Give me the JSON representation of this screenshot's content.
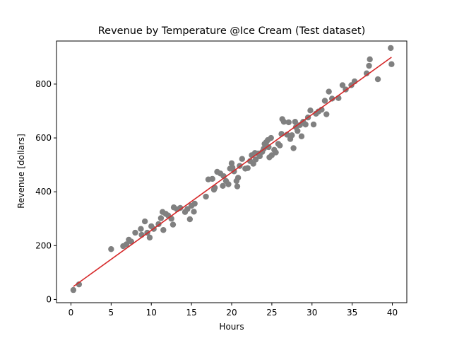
{
  "chart_data": {
    "type": "scatter",
    "title": "Revenue by Temperature @Ice Cream (Test dataset)",
    "xlabel": "Hours",
    "ylabel": "Revenue [dollars]",
    "xlim": [
      -1.8,
      41.8
    ],
    "ylim": [
      -12,
      960
    ],
    "xticks": [
      0,
      5,
      10,
      15,
      20,
      25,
      30,
      35,
      40
    ],
    "yticks": [
      0,
      200,
      400,
      600,
      800
    ],
    "grid": false,
    "legend": "none",
    "colors": {
      "points": "#808080",
      "fit_line": "#d62728",
      "axes": "#000000"
    },
    "series": [
      {
        "kind": "scatter",
        "points": [
          [
            0.3,
            35
          ],
          [
            1.0,
            56
          ],
          [
            5.0,
            187
          ],
          [
            6.5,
            198
          ],
          [
            6.9,
            205
          ],
          [
            7.2,
            222
          ],
          [
            7.5,
            215
          ],
          [
            8.0,
            248
          ],
          [
            8.7,
            262
          ],
          [
            8.8,
            240
          ],
          [
            9.2,
            290
          ],
          [
            9.5,
            248
          ],
          [
            9.8,
            230
          ],
          [
            10.0,
            272
          ],
          [
            10.3,
            262
          ],
          [
            10.9,
            280
          ],
          [
            11.2,
            302
          ],
          [
            11.4,
            325
          ],
          [
            11.5,
            258
          ],
          [
            11.8,
            318
          ],
          [
            12.1,
            312
          ],
          [
            12.5,
            300
          ],
          [
            12.7,
            278
          ],
          [
            12.8,
            342
          ],
          [
            13.2,
            335
          ],
          [
            13.6,
            340
          ],
          [
            14.2,
            325
          ],
          [
            14.5,
            336
          ],
          [
            14.8,
            298
          ],
          [
            15.0,
            348
          ],
          [
            15.3,
            326
          ],
          [
            15.4,
            356
          ],
          [
            16.8,
            382
          ],
          [
            17.1,
            446
          ],
          [
            17.6,
            448
          ],
          [
            17.8,
            408
          ],
          [
            17.9,
            415
          ],
          [
            18.2,
            474
          ],
          [
            18.6,
            468
          ],
          [
            18.9,
            422
          ],
          [
            19.0,
            458
          ],
          [
            19.3,
            440
          ],
          [
            19.6,
            428
          ],
          [
            19.8,
            486
          ],
          [
            20.0,
            506
          ],
          [
            20.1,
            490
          ],
          [
            20.3,
            476
          ],
          [
            20.6,
            440
          ],
          [
            20.7,
            420
          ],
          [
            20.8,
            452
          ],
          [
            21.0,
            496
          ],
          [
            21.3,
            522
          ],
          [
            21.7,
            486
          ],
          [
            22.0,
            488
          ],
          [
            22.3,
            514
          ],
          [
            22.5,
            536
          ],
          [
            22.7,
            504
          ],
          [
            22.9,
            544
          ],
          [
            23.0,
            520
          ],
          [
            23.3,
            542
          ],
          [
            23.5,
            532
          ],
          [
            23.8,
            548
          ],
          [
            24.0,
            560
          ],
          [
            24.1,
            578
          ],
          [
            24.3,
            584
          ],
          [
            24.5,
            592
          ],
          [
            24.6,
            566
          ],
          [
            24.7,
            528
          ],
          [
            24.9,
            600
          ],
          [
            25.0,
            536
          ],
          [
            25.3,
            556
          ],
          [
            25.5,
            546
          ],
          [
            25.8,
            578
          ],
          [
            26.0,
            572
          ],
          [
            26.2,
            615
          ],
          [
            26.3,
            670
          ],
          [
            26.5,
            660
          ],
          [
            26.9,
            612
          ],
          [
            27.1,
            658
          ],
          [
            27.3,
            596
          ],
          [
            27.5,
            610
          ],
          [
            27.7,
            562
          ],
          [
            27.9,
            660
          ],
          [
            28.0,
            640
          ],
          [
            28.2,
            626
          ],
          [
            28.5,
            648
          ],
          [
            28.7,
            606
          ],
          [
            28.9,
            660
          ],
          [
            29.2,
            650
          ],
          [
            29.5,
            676
          ],
          [
            29.8,
            702
          ],
          [
            30.2,
            650
          ],
          [
            30.5,
            690
          ],
          [
            30.8,
            698
          ],
          [
            31.2,
            705
          ],
          [
            31.6,
            738
          ],
          [
            31.8,
            688
          ],
          [
            32.1,
            772
          ],
          [
            32.5,
            746
          ],
          [
            33.3,
            748
          ],
          [
            33.8,
            796
          ],
          [
            34.2,
            780
          ],
          [
            34.9,
            796
          ],
          [
            35.3,
            810
          ],
          [
            36.8,
            840
          ],
          [
            37.1,
            868
          ],
          [
            37.2,
            892
          ],
          [
            38.2,
            818
          ],
          [
            39.8,
            934
          ],
          [
            39.9,
            874
          ]
        ]
      },
      {
        "kind": "line",
        "points": [
          [
            0.3,
            48
          ],
          [
            39.9,
            900
          ]
        ]
      }
    ]
  }
}
